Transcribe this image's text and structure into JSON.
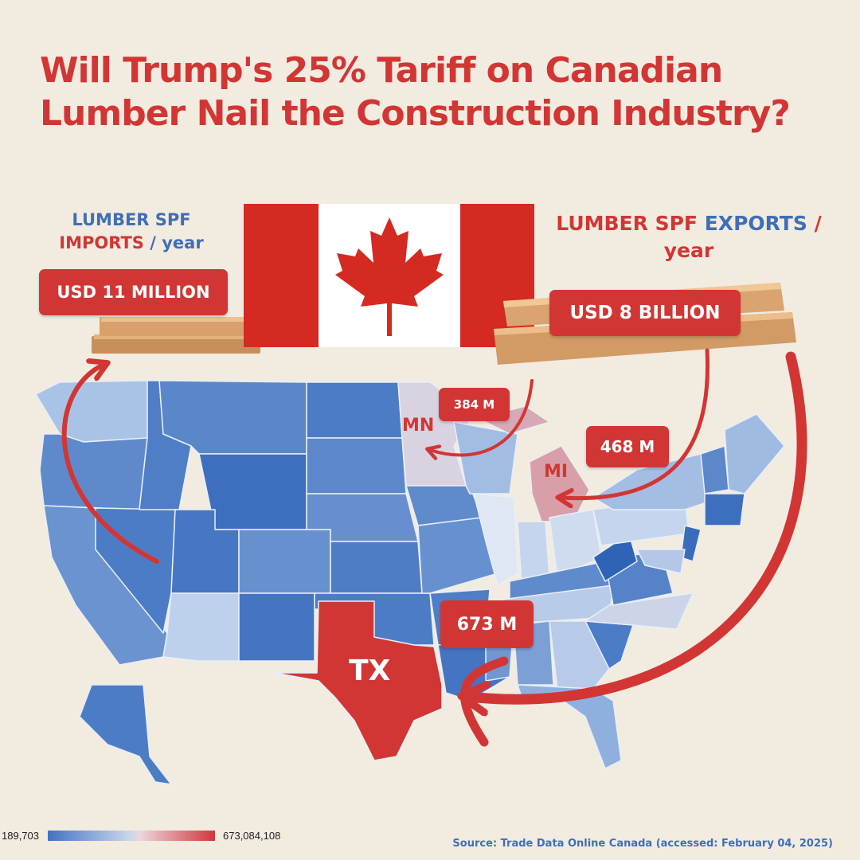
{
  "title": {
    "line1": "Will Trump's 25% Tariff on Canadian",
    "line2": "Lumber Nail the Construction Industry?"
  },
  "imports": {
    "label_part1": "LUMBER SPF",
    "label_part2": "IMPORTS",
    "label_part3": "/ year",
    "value": "USD 11 MILLION",
    "value_usd": 11000000
  },
  "exports": {
    "label_part1": "LUMBER SPF",
    "label_part2": "EXPORTS",
    "label_part3": "/",
    "label_part4": "year",
    "value": "USD 8 BILLION",
    "value_usd": 8000000000
  },
  "destinations": [
    {
      "state": "MN",
      "value": "384 M"
    },
    {
      "state": "MI",
      "value": "468 M"
    },
    {
      "state": "TX",
      "value": "673 M"
    }
  ],
  "legend": {
    "min": "189,703",
    "max": "673,084,108",
    "color_low": "#4472c4",
    "color_mid": "#d7dcea",
    "color_high": "#d0373d"
  },
  "source": "Source:  Trade Data Online Canada (accessed: February 04, 2025)",
  "colors": {
    "accent_red": "#d23634",
    "accent_blue": "#3f6fb5",
    "background": "#f2ebe0"
  },
  "icons": [
    "canada-flag-icon",
    "maple-leaf-icon",
    "lumber-planks-icon",
    "flow-arrow-icon"
  ]
}
